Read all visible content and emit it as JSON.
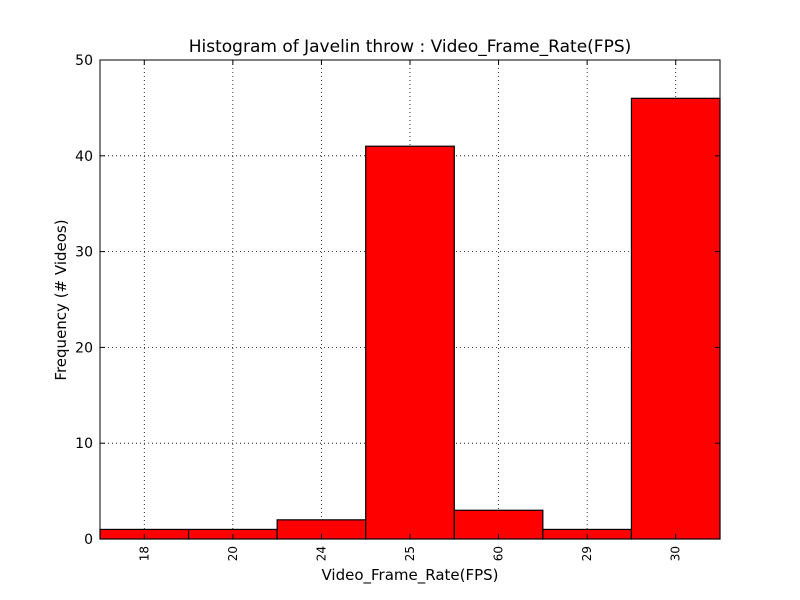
{
  "chart_data": {
    "type": "bar",
    "title": "Histogram of Javelin throw : Video_Frame_Rate(FPS)",
    "xlabel": "Video_Frame_Rate(FPS)",
    "ylabel": "Frequency (# Videos)",
    "categories": [
      "18",
      "20",
      "24",
      "25",
      "60",
      "29",
      "30"
    ],
    "values": [
      1,
      1,
      2,
      41,
      3,
      1,
      46
    ],
    "ylim": [
      0,
      50
    ],
    "yticks": [
      "0",
      "10",
      "20",
      "30",
      "40",
      "50"
    ],
    "grid": true,
    "bar_color": "#ff0000",
    "edge_color": "#000000"
  }
}
